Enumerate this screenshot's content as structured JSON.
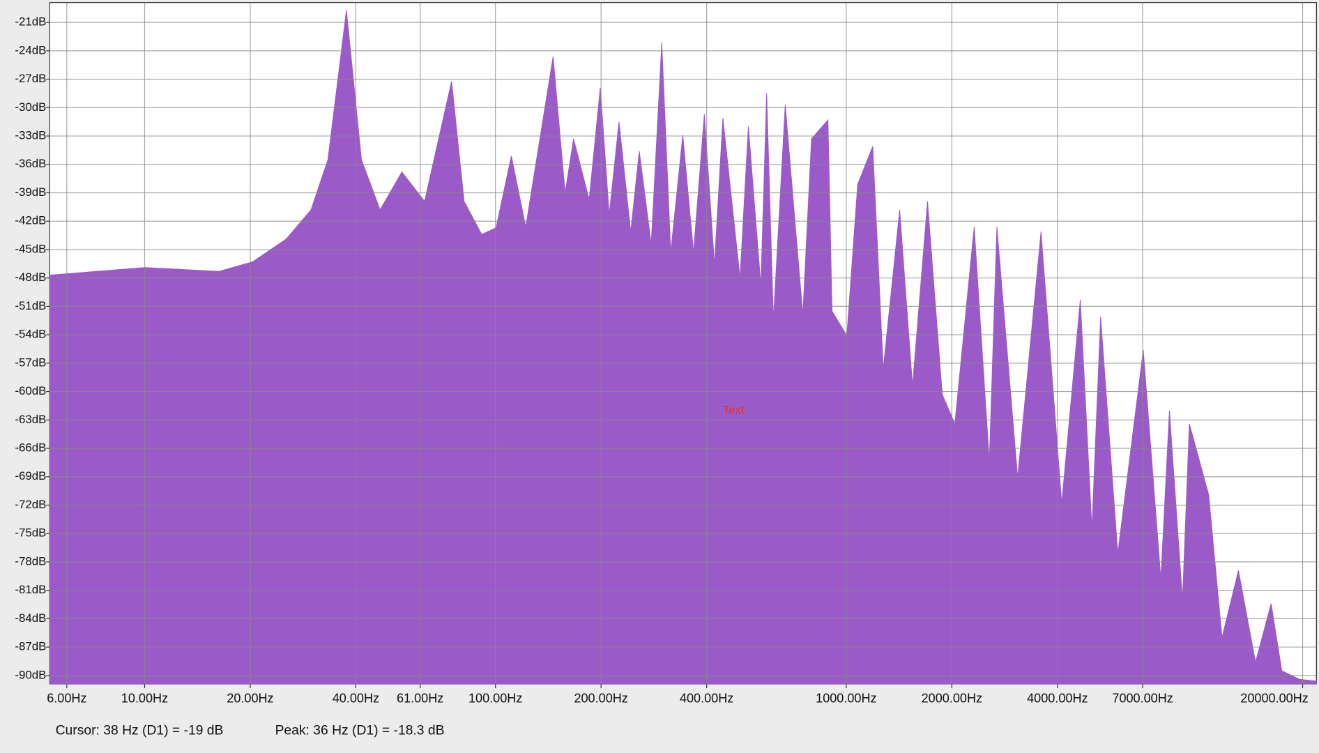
{
  "chart_data": {
    "type": "area",
    "xscale": "log",
    "color": "#9a5bc8",
    "grid": true,
    "x": [
      5.36,
      10,
      16.3,
      20.3,
      25.3,
      29.8,
      33.3,
      37.6,
      41.5,
      46.9,
      54.1,
      62.8,
      75.0,
      81.4,
      91.4,
      100.4,
      111,
      122,
      146,
      158,
      167,
      178,
      185,
      199,
      211,
      225,
      243,
      257,
      278,
      298,
      316,
      342,
      367,
      394,
      421,
      445,
      498,
      526,
      571,
      593,
      620,
      670,
      752,
      796,
      887,
      911,
      1004,
      1078,
      1190,
      1275,
      1420,
      1545,
      1705,
      1878,
      2040,
      2316,
      2558,
      2688,
      3080,
      3591,
      4114,
      4647,
      5016,
      5310,
      5944,
      7026,
      7886,
      8342,
      9089,
      9508,
      10794,
      11780,
      13120,
      14680,
      16260,
      17440,
      19560,
      21900
    ],
    "values": [
      -47.7,
      -46.9,
      -47.3,
      -46.3,
      -43.9,
      -40.8,
      -35.5,
      -19.7,
      -35.5,
      -40.8,
      -36.8,
      -39.9,
      -27.2,
      -39.9,
      -43.4,
      -42.7,
      -35.1,
      -42.6,
      -24.6,
      -39,
      -33.3,
      -37.3,
      -39.7,
      -27.9,
      -41.3,
      -31.5,
      -43.1,
      -34.6,
      -44.4,
      -23.1,
      -45.3,
      -32.9,
      -45.3,
      -30.7,
      -46.6,
      -31.1,
      -48,
      -32,
      -48.8,
      -28.5,
      -52.4,
      -29.7,
      -51.9,
      -33.3,
      -31.3,
      -51.5,
      -54.1,
      -38.1,
      -34.1,
      -57.6,
      -40.8,
      -59.4,
      -39.9,
      -60.3,
      -63.4,
      -42.6,
      -67.4,
      -42.6,
      -69.1,
      -43.1,
      -71.8,
      -50.3,
      -74.5,
      -52.1,
      -77.1,
      -55.6,
      -79.8,
      -62,
      -82,
      -63.4,
      -70.9,
      -86,
      -78.9,
      -88.6,
      -82.4,
      -89.5,
      -90.4,
      -90.6
    ],
    "xlim": [
      5.36,
      21900
    ],
    "ylim": [
      -90.9,
      -18.9
    ],
    "xticks": [
      {
        "value": 6,
        "label": "6.00Hz"
      },
      {
        "value": 10,
        "label": "10.00Hz"
      },
      {
        "value": 20,
        "label": "20.00Hz"
      },
      {
        "value": 40,
        "label": "40.00Hz"
      },
      {
        "value": 61,
        "label": "61.00Hz"
      },
      {
        "value": 100,
        "label": "100.00Hz"
      },
      {
        "value": 200,
        "label": "200.00Hz"
      },
      {
        "value": 400,
        "label": "400.00Hz"
      },
      {
        "value": 1000,
        "label": "1000.00Hz"
      },
      {
        "value": 2000,
        "label": "2000.00Hz"
      },
      {
        "value": 4000,
        "label": "4000.00Hz"
      },
      {
        "value": 7000,
        "label": "7000.00Hz"
      },
      {
        "value": 20000,
        "label": "20000.00Hz"
      }
    ],
    "yticks": [
      {
        "value": -21,
        "label": "-21dB"
      },
      {
        "value": -24,
        "label": "-24dB"
      },
      {
        "value": -27,
        "label": "-27dB"
      },
      {
        "value": -30,
        "label": "-30dB"
      },
      {
        "value": -33,
        "label": "-33dB"
      },
      {
        "value": -36,
        "label": "-36dB"
      },
      {
        "value": -39,
        "label": "-39dB"
      },
      {
        "value": -42,
        "label": "-42dB"
      },
      {
        "value": -45,
        "label": "-45dB"
      },
      {
        "value": -48,
        "label": "-48dB"
      },
      {
        "value": -51,
        "label": "-51dB"
      },
      {
        "value": -54,
        "label": "-54dB"
      },
      {
        "value": -57,
        "label": "-57dB"
      },
      {
        "value": -60,
        "label": "-60dB"
      },
      {
        "value": -63,
        "label": "-63dB"
      },
      {
        "value": -66,
        "label": "-66dB"
      },
      {
        "value": -69,
        "label": "-69dB"
      },
      {
        "value": -72,
        "label": "-72dB"
      },
      {
        "value": -75,
        "label": "-75dB"
      },
      {
        "value": -78,
        "label": "-78dB"
      },
      {
        "value": -81,
        "label": "-81dB"
      },
      {
        "value": -84,
        "label": "-84dB"
      },
      {
        "value": -87,
        "label": "-87dB"
      },
      {
        "value": -90,
        "label": "-90dB"
      }
    ],
    "annotation": {
      "text": "Text",
      "color": "#e03030"
    }
  },
  "status": {
    "cursor": "Cursor: 38 Hz (D1) = -19 dB",
    "peak": "Peak: 36 Hz (D1) = -18.3 dB"
  }
}
